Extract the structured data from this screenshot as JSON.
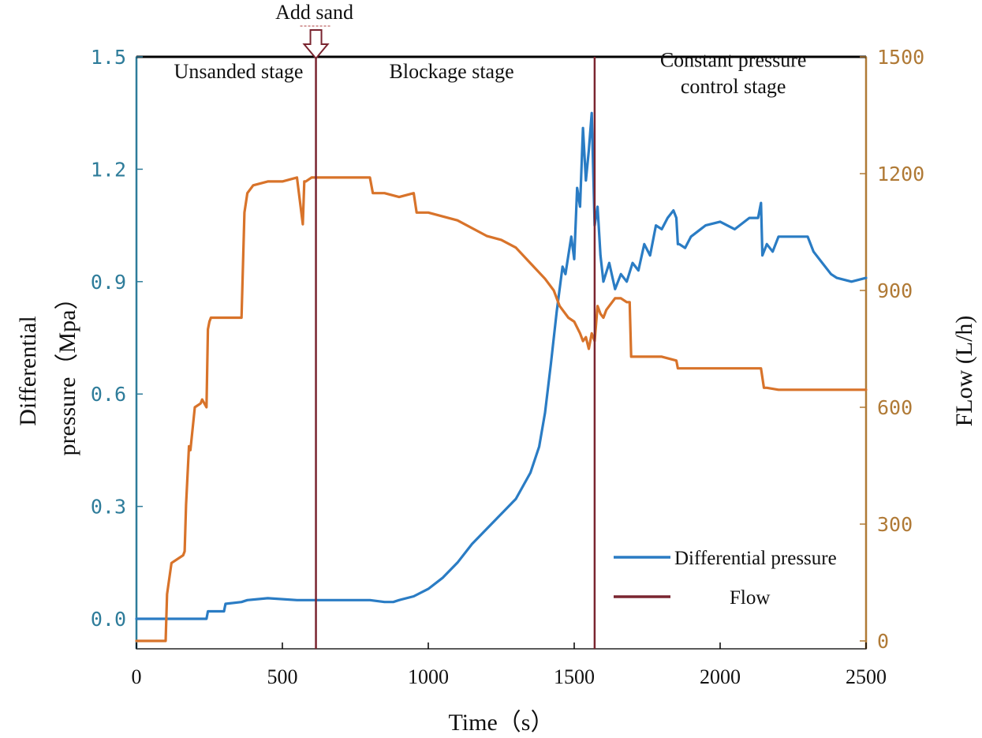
{
  "chart_data": {
    "type": "line",
    "xlabel": "Time（s）",
    "ylabel_left": [
      "Differential",
      "pressure（Mpa）"
    ],
    "ylabel_right": "FLow (L/h)",
    "xlim": [
      0,
      2500
    ],
    "ylim_left": [
      -0.08,
      1.5
    ],
    "ylim_right": [
      0,
      1500
    ],
    "x_ticks": [
      0,
      500,
      1000,
      1500,
      2000,
      2500
    ],
    "x_tick_labels": [
      "0",
      "500",
      "1000",
      "1500",
      "2000",
      "2500"
    ],
    "y_left_ticks": [
      0.0,
      0.3,
      0.6,
      0.9,
      1.2,
      1.5
    ],
    "y_left_tick_labels": [
      "0.0",
      "0.3",
      "0.6",
      "0.9",
      "1.2",
      "1.5"
    ],
    "y_right_ticks": [
      0,
      300,
      600,
      900,
      1200,
      1500
    ],
    "y_right_tick_labels": [
      "0",
      "300",
      "600",
      "900",
      "1200",
      "1500"
    ],
    "colors": {
      "pressure": "#2a7cc4",
      "flow": "#d8732a",
      "marker": "#7a2530",
      "left_axis": "#2e7c9a",
      "right_axis": "#b07a36"
    },
    "annotations": {
      "add_sand": {
        "label": "Add sand",
        "x": 615
      },
      "divider_x": 1570,
      "stages": [
        {
          "label": "Unsanded stage",
          "x": 350,
          "y": 1.46
        },
        {
          "label": "Blockage stage",
          "x": 1080,
          "y": 1.46
        },
        {
          "label": "Constant pressure",
          "x": 2045,
          "y": 1.49
        },
        {
          "label": "control stage",
          "x": 2045,
          "y": 1.42
        }
      ]
    },
    "legend": [
      {
        "name": "Differential pressure",
        "color": "#2a7cc4"
      },
      {
        "name": "Flow",
        "color": "#7a2530"
      }
    ],
    "series": [
      {
        "name": "Differential pressure",
        "axis": "left",
        "x": [
          0,
          240,
          245,
          300,
          305,
          360,
          380,
          450,
          550,
          600,
          620,
          700,
          800,
          850,
          880,
          900,
          950,
          1000,
          1050,
          1100,
          1150,
          1200,
          1250,
          1300,
          1350,
          1380,
          1400,
          1420,
          1440,
          1460,
          1470,
          1490,
          1500,
          1510,
          1520,
          1530,
          1540,
          1550,
          1560,
          1570,
          1580,
          1590,
          1600,
          1620,
          1640,
          1660,
          1680,
          1700,
          1720,
          1740,
          1760,
          1780,
          1800,
          1820,
          1840,
          1850,
          1855,
          1860,
          1880,
          1900,
          1950,
          2000,
          2050,
          2100,
          2130,
          2140,
          2145,
          2160,
          2180,
          2200,
          2250,
          2300,
          2320,
          2350,
          2380,
          2400,
          2450,
          2500
        ],
        "values": [
          0.0,
          0.0,
          0.02,
          0.02,
          0.04,
          0.045,
          0.05,
          0.055,
          0.05,
          0.05,
          0.05,
          0.05,
          0.05,
          0.045,
          0.045,
          0.05,
          0.06,
          0.08,
          0.11,
          0.15,
          0.2,
          0.24,
          0.28,
          0.32,
          0.39,
          0.46,
          0.55,
          0.68,
          0.82,
          0.94,
          0.92,
          1.02,
          0.96,
          1.15,
          1.1,
          1.31,
          1.17,
          1.25,
          1.35,
          1.05,
          1.1,
          0.97,
          0.9,
          0.95,
          0.88,
          0.92,
          0.9,
          0.95,
          0.93,
          1.0,
          0.97,
          1.05,
          1.04,
          1.07,
          1.09,
          1.07,
          1.0,
          1.0,
          0.99,
          1.02,
          1.05,
          1.06,
          1.04,
          1.07,
          1.07,
          1.11,
          0.97,
          1.0,
          0.98,
          1.02,
          1.02,
          1.02,
          0.98,
          0.95,
          0.92,
          0.91,
          0.9,
          0.91
        ]
      },
      {
        "name": "Flow",
        "axis": "right",
        "x": [
          0,
          90,
          100,
          105,
          120,
          160,
          165,
          170,
          180,
          185,
          200,
          220,
          225,
          240,
          245,
          250,
          255,
          300,
          330,
          360,
          370,
          380,
          400,
          450,
          500,
          550,
          570,
          575,
          580,
          600,
          650,
          700,
          750,
          800,
          810,
          850,
          900,
          950,
          960,
          1000,
          1100,
          1200,
          1250,
          1300,
          1350,
          1400,
          1430,
          1450,
          1480,
          1500,
          1520,
          1530,
          1540,
          1550,
          1560,
          1570,
          1580,
          1590,
          1600,
          1610,
          1620,
          1640,
          1660,
          1680,
          1690,
          1695,
          1700,
          1800,
          1850,
          1855,
          1900,
          2000,
          2100,
          2140,
          2150,
          2160,
          2200,
          2300,
          2400,
          2500
        ],
        "values": [
          0,
          0,
          0,
          120,
          200,
          220,
          230,
          350,
          500,
          490,
          600,
          610,
          620,
          600,
          800,
          820,
          830,
          830,
          830,
          830,
          1100,
          1150,
          1170,
          1180,
          1180,
          1190,
          1070,
          1180,
          1180,
          1190,
          1190,
          1190,
          1190,
          1190,
          1150,
          1150,
          1140,
          1150,
          1100,
          1100,
          1080,
          1040,
          1030,
          1010,
          970,
          930,
          900,
          860,
          830,
          820,
          790,
          770,
          780,
          750,
          790,
          770,
          860,
          840,
          830,
          850,
          860,
          880,
          880,
          870,
          870,
          730,
          730,
          730,
          720,
          700,
          700,
          700,
          700,
          700,
          650,
          650,
          645,
          645,
          645,
          645
        ]
      }
    ]
  }
}
